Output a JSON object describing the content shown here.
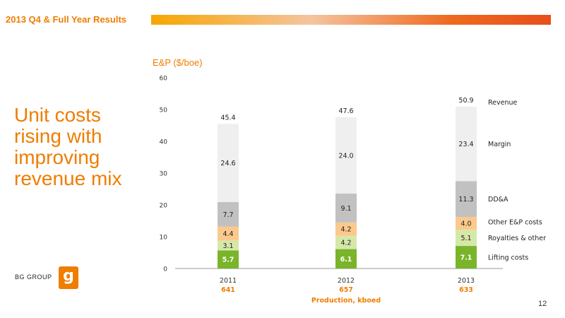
{
  "header": {
    "title": "2013 Q4 & Full Year Results"
  },
  "headline": {
    "lines": [
      "Unit costs",
      "rising with",
      "improving",
      "revenue mix"
    ]
  },
  "brand": {
    "name": "BG GROUP",
    "mark_letter": "g"
  },
  "page_number": "12",
  "colors": {
    "accent": "#ef7d00",
    "lifting_costs": "#7ab42a",
    "royalties": "#d6e8a8",
    "other_ep": "#fbc98c",
    "dda": "#c1c1c1",
    "margin": "#efefef"
  },
  "chart_data": {
    "type": "bar",
    "stacked": true,
    "title": "",
    "ylabel": "E&P ($/boe)",
    "xlabel": "Production, kboed",
    "ylim": [
      0,
      60
    ],
    "yticks": [
      0,
      10,
      20,
      30,
      40,
      50,
      60
    ],
    "categories": [
      "2011",
      "2012",
      "2013"
    ],
    "production": [
      "641",
      "657",
      "633"
    ],
    "totals": [
      45.4,
      47.6,
      50.9
    ],
    "series": [
      {
        "name": "Lifting costs",
        "values": [
          5.7,
          6.1,
          7.1
        ],
        "color": "#7ab42a",
        "label_color": "#ffffff"
      },
      {
        "name": "Royalties & other",
        "values": [
          3.1,
          4.2,
          5.1
        ],
        "color": "#d6e8a8",
        "label_color": "#222222"
      },
      {
        "name": "Other E&P costs",
        "values": [
          4.4,
          4.2,
          4.0
        ],
        "color": "#fbc98c",
        "label_color": "#222222"
      },
      {
        "name": "DD&A",
        "values": [
          7.7,
          9.1,
          11.3
        ],
        "color": "#c1c1c1",
        "label_color": "#222222"
      },
      {
        "name": "Margin",
        "values": [
          24.6,
          24.0,
          23.4
        ],
        "color": "#efefef",
        "label_color": "#222222"
      }
    ],
    "total_label": "Revenue",
    "grid": false,
    "legend": "right"
  }
}
